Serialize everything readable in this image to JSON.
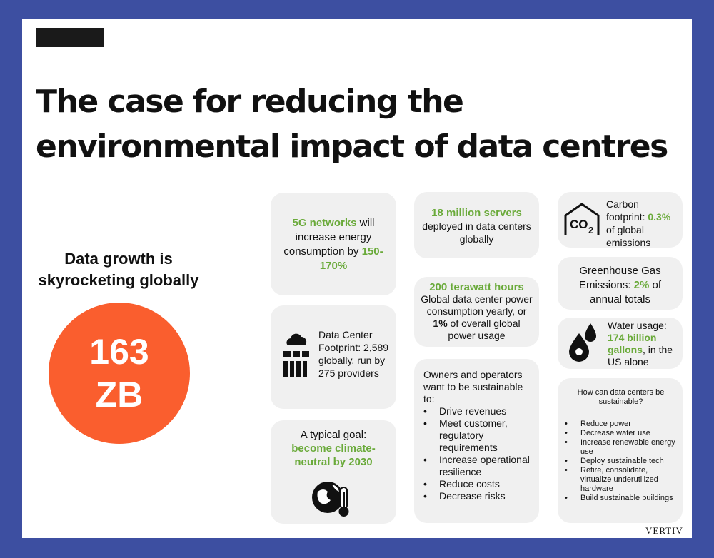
{
  "title_line1": "The case for reducing the",
  "title_line2": "environmental impact of data centres",
  "growth": {
    "line1": "Data growth is",
    "line2": "skyrocketing globally",
    "value": "163",
    "unit": "ZB"
  },
  "card_5g": {
    "p1": "5G networks",
    "p2": " will increase energy consumption by ",
    "p3": "150-170%"
  },
  "card_footprint": {
    "text": "Data Center Footprint: 2,589 globally, run by 275 providers"
  },
  "card_goal": {
    "p1": "A typical goal:",
    "p2": "become climate-neutral by 2030"
  },
  "card_servers": {
    "p1": "18 million servers",
    "p2": "deployed in data centers globally"
  },
  "card_power": {
    "p1": "200 terawatt hours",
    "p2": "Global data center power consumption yearly, or ",
    "p3": "1%",
    "p4": " of overall global power usage"
  },
  "card_owners": {
    "intro": "Owners and operators want to be sustainable to:",
    "items": [
      "Drive revenues",
      "Meet customer, regulatory requirements",
      "Increase operational resilience",
      "Reduce costs",
      "Decrease risks"
    ]
  },
  "card_carbon": {
    "p1": "Carbon footprint: ",
    "p2": "0.3%",
    "p3": " of global emissions",
    "icon_label": "CO",
    "icon_sub": "2"
  },
  "card_ghg": {
    "p1": "Greenhouse Gas Emissions: ",
    "p2": "2%",
    "p3": " of annual totals"
  },
  "card_water": {
    "p1": "Water usage: ",
    "p2": "174 billion gallons",
    "p3": ", in the US alone"
  },
  "card_sustain": {
    "heading": "How can data centers be sustainable?",
    "items": [
      "Reduce power",
      "Decrease water use",
      "Increase renewable energy use",
      "Deploy sustainable tech",
      "Retire, consolidate, virtualize underutilized hardware",
      "Build sustainable buildings"
    ]
  },
  "brand": "VERTIV",
  "colors": {
    "accent_green": "#6aaa3a",
    "circle_orange": "#fa5e2e",
    "border_blue": "#3d4fa1"
  }
}
